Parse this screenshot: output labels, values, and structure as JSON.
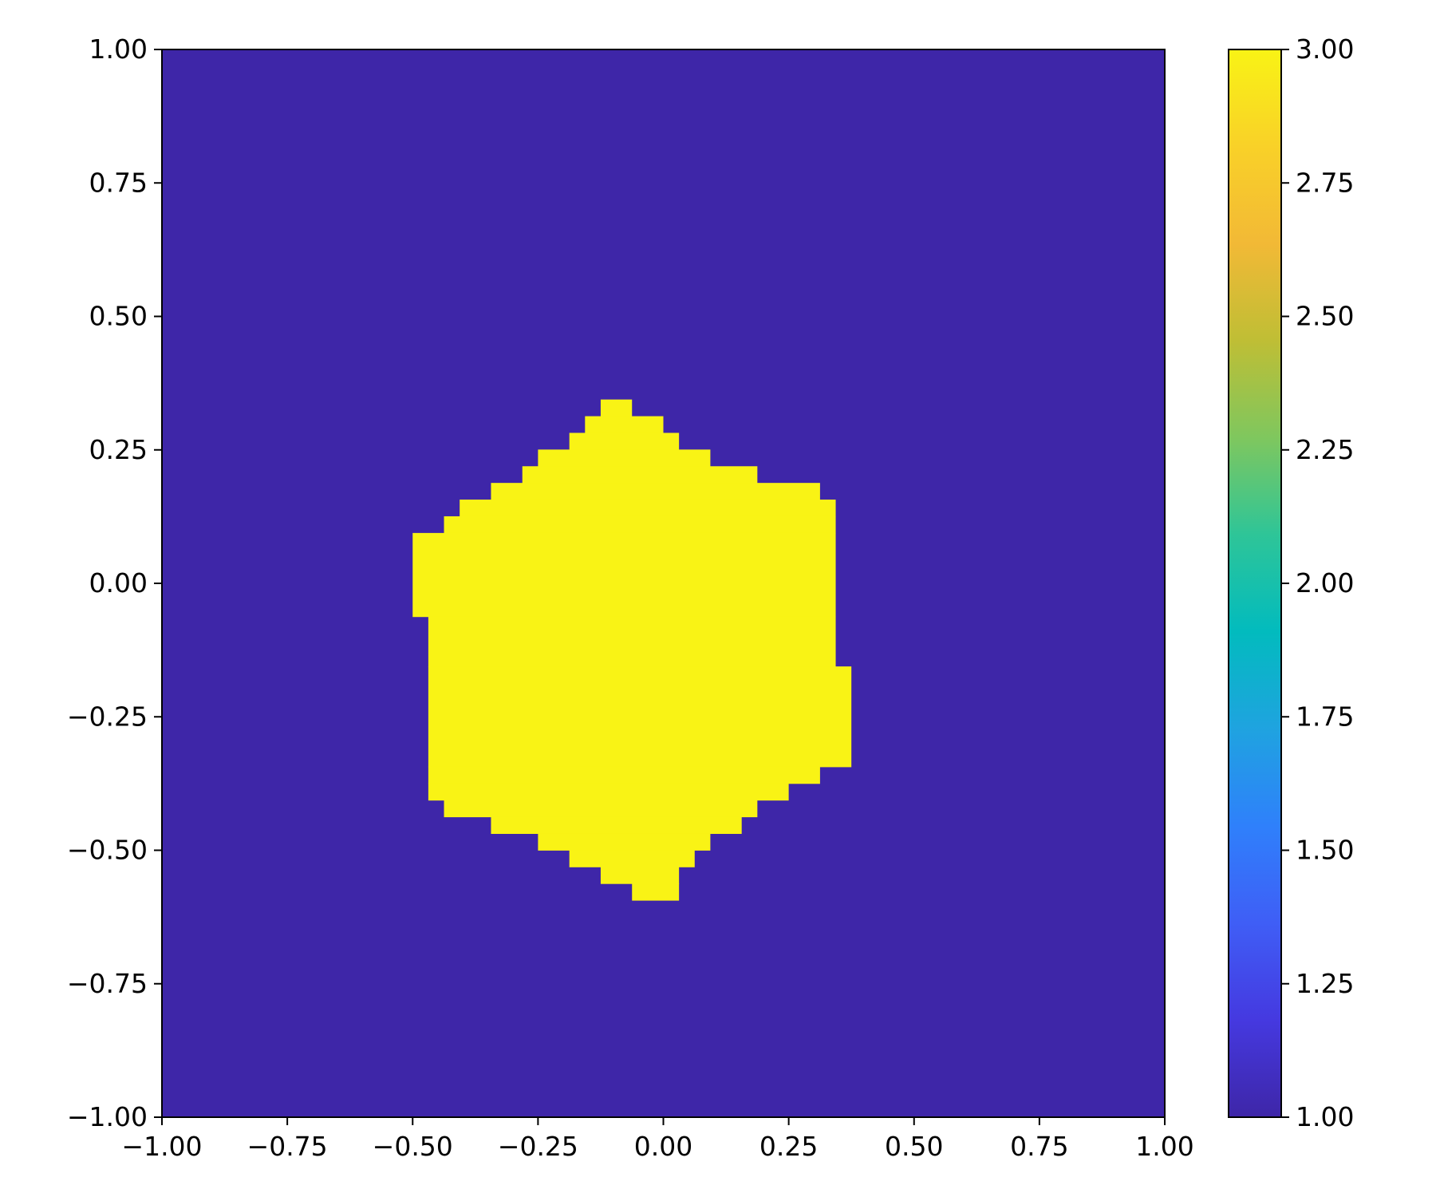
{
  "chart_data": {
    "type": "heatmap",
    "title": "",
    "xlabel": "",
    "ylabel": "",
    "xlim": [
      -1.0,
      1.0
    ],
    "ylim": [
      -1.0,
      1.0
    ],
    "grid": false,
    "x_ticks": [
      -1.0,
      -0.75,
      -0.5,
      -0.25,
      0.0,
      0.25,
      0.5,
      0.75,
      1.0
    ],
    "x_tick_labels": [
      "−1.00",
      "−0.75",
      "−0.50",
      "−0.25",
      "0.00",
      "0.25",
      "0.50",
      "0.75",
      "1.00"
    ],
    "y_ticks": [
      -1.0,
      -0.75,
      -0.5,
      -0.25,
      0.0,
      0.25,
      0.5,
      0.75,
      1.0
    ],
    "y_tick_labels": [
      "−1.00",
      "−0.75",
      "−0.50",
      "−0.25",
      "0.00",
      "0.25",
      "0.50",
      "0.75",
      "1.00"
    ],
    "background_value": 1.0,
    "region_value": 3.0,
    "cell_size": 0.03125,
    "region_rows": [
      {
        "y": [
          0.3125,
          0.34375
        ],
        "x": [
          -0.125,
          -0.0625
        ]
      },
      {
        "y": [
          0.28125,
          0.3125
        ],
        "x": [
          -0.15625,
          0.0
        ]
      },
      {
        "y": [
          0.25,
          0.28125
        ],
        "x": [
          -0.1875,
          0.03125
        ]
      },
      {
        "y": [
          0.21875,
          0.25
        ],
        "x": [
          -0.25,
          0.09375
        ]
      },
      {
        "y": [
          0.1875,
          0.21875
        ],
        "x": [
          -0.28125,
          0.1875
        ]
      },
      {
        "y": [
          0.15625,
          0.1875
        ],
        "x": [
          -0.34375,
          0.3125
        ]
      },
      {
        "y": [
          0.125,
          0.15625
        ],
        "x": [
          -0.40625,
          0.34375
        ]
      },
      {
        "y": [
          0.09375,
          0.125
        ],
        "x": [
          -0.4375,
          0.34375
        ]
      },
      {
        "y": [
          -0.0625,
          0.09375
        ],
        "x": [
          -0.5,
          0.34375
        ]
      },
      {
        "y": [
          -0.15625,
          -0.0625
        ],
        "x": [
          -0.46875,
          0.34375
        ]
      },
      {
        "y": [
          -0.34375,
          -0.15625
        ],
        "x": [
          -0.46875,
          0.375
        ]
      },
      {
        "y": [
          -0.375,
          -0.34375
        ],
        "x": [
          -0.46875,
          0.3125
        ]
      },
      {
        "y": [
          -0.40625,
          -0.375
        ],
        "x": [
          -0.46875,
          0.25
        ]
      },
      {
        "y": [
          -0.4375,
          -0.40625
        ],
        "x": [
          -0.4375,
          0.1875
        ]
      },
      {
        "y": [
          -0.46875,
          -0.4375
        ],
        "x": [
          -0.34375,
          0.15625
        ]
      },
      {
        "y": [
          -0.5,
          -0.46875
        ],
        "x": [
          -0.25,
          0.09375
        ]
      },
      {
        "y": [
          -0.53125,
          -0.5
        ],
        "x": [
          -0.1875,
          0.0625
        ]
      },
      {
        "y": [
          -0.5625,
          -0.53125
        ],
        "x": [
          -0.125,
          0.03125
        ]
      },
      {
        "y": [
          -0.59375,
          -0.5625
        ],
        "x": [
          -0.0625,
          0.03125
        ]
      }
    ],
    "colorbar": {
      "range": [
        1.0,
        3.0
      ],
      "ticks": [
        1.0,
        1.25,
        1.5,
        1.75,
        2.0,
        2.25,
        2.5,
        2.75,
        3.0
      ],
      "tick_labels": [
        "1.00",
        "1.25",
        "1.50",
        "1.75",
        "2.00",
        "2.25",
        "2.50",
        "2.75",
        "3.00"
      ]
    },
    "colormap": [
      "#3e26a8",
      "#4539e0",
      "#3f5ef6",
      "#2f80fb",
      "#1fa3e0",
      "#02bbbe",
      "#2ec598",
      "#7fc75e",
      "#bfbe35",
      "#f2b936",
      "#f9d128",
      "#f9f315"
    ]
  }
}
